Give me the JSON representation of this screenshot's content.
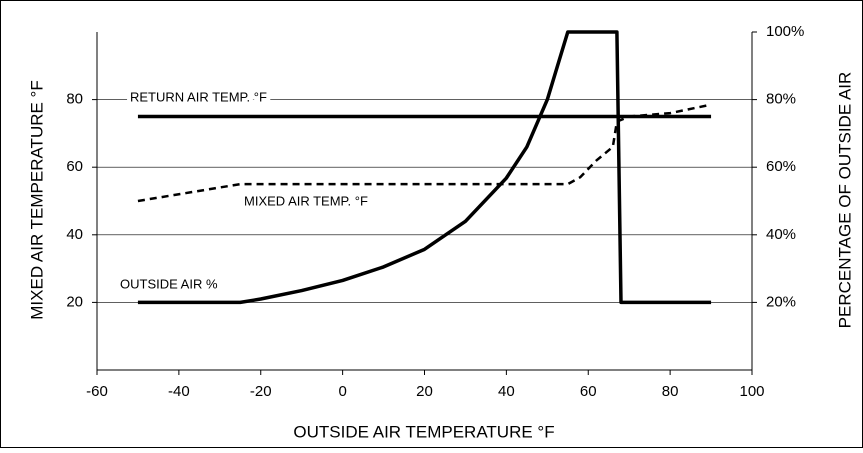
{
  "chart_data": {
    "type": "line",
    "xlabel": "OUTSIDE AIR TEMPERATURE °F",
    "ylabel": "MIXED AIR TEMPERATURE °F",
    "y2label": "PERCENTAGE OF OUTSIDE AIR",
    "annotations": [
      "RETURN AIR TEMP. °F",
      "MIXED AIR TEMP. °F",
      "OUTSIDE AIR %"
    ],
    "xlim": [
      -60,
      100
    ],
    "xticks": [
      -60,
      -40,
      -20,
      0,
      20,
      40,
      60,
      80,
      100
    ],
    "ylim": [
      0,
      100
    ],
    "yticks": [
      20,
      40,
      60,
      80
    ],
    "y2lim": [
      0,
      100
    ],
    "y2ticks": [
      {
        "value": 20,
        "label": "20%"
      },
      {
        "value": 40,
        "label": "40%"
      },
      {
        "value": 60,
        "label": "60%"
      },
      {
        "value": 80,
        "label": "80%"
      },
      {
        "value": 100,
        "label": "100%"
      }
    ],
    "grid": true,
    "series": [
      {
        "color": "#000000",
        "dashed": false,
        "x": [
          -50,
          90
        ],
        "values": [
          75,
          75
        ]
      },
      {
        "color": "#000000",
        "dashed": true,
        "x": [
          -50,
          -25,
          55,
          58,
          62,
          66,
          67,
          70,
          80,
          90
        ],
        "values": [
          50,
          55,
          55,
          57,
          62,
          66,
          73.5,
          75,
          76,
          78.5
        ]
      },
      {
        "color": "#000000",
        "dashed": false,
        "axis": "y2",
        "x": [
          -50,
          -25,
          -20,
          -10,
          0,
          10,
          20,
          30,
          40,
          45,
          50,
          53,
          55,
          67,
          68,
          90
        ],
        "values": [
          20,
          20,
          21,
          23.5,
          26.5,
          30.5,
          35.7,
          44,
          56.8,
          66,
          80,
          92,
          100,
          100,
          20,
          20
        ]
      }
    ]
  }
}
